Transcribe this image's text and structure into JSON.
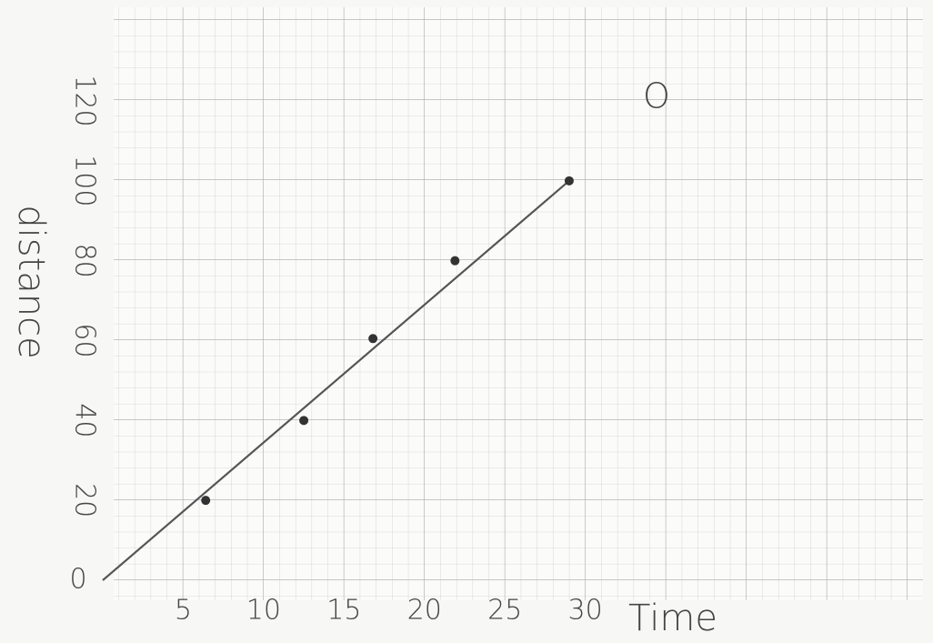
{
  "chart_data": {
    "type": "scatter",
    "x_label": "Time",
    "y_label": "distance",
    "x": [
      6.4,
      12.5,
      16.8,
      21.9,
      29
    ],
    "values": [
      20,
      40,
      60.5,
      80,
      100
    ],
    "color": "#333333",
    "fit_line": {
      "x": [
        0,
        29
      ],
      "values": [
        0,
        100
      ],
      "color": "#555555"
    },
    "xlim": [
      0,
      51
    ],
    "ylim": [
      0,
      143
    ],
    "xticks": [
      5,
      10,
      15,
      20,
      25,
      30
    ],
    "yticks": [
      0,
      20,
      40,
      60,
      80,
      100,
      120
    ],
    "annotation": "O"
  }
}
